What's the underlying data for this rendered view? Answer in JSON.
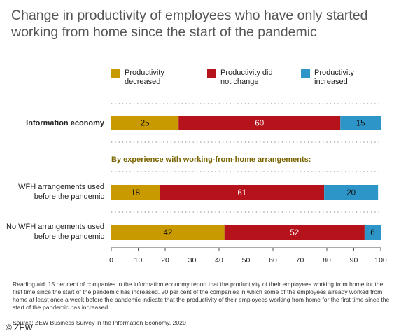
{
  "title": "Change in productivity of employees who have only started working from home since the start of the pandemic",
  "legend": [
    {
      "label": "Productivity decreased",
      "color": "#c89a00"
    },
    {
      "label": "Productivity did not change",
      "color": "#b5121b"
    },
    {
      "label": "Productivity increased",
      "color": "#2e95c9"
    }
  ],
  "section_heading": "By experience with working-from-home arrangements:",
  "footnote": "Reading aid: 15 per cent of companies in the information economy report that the productivity of their employees working from home for the first time since the start of the pandemic has increased. 20 per cent of the companies in which some of the employees already worked from home at least once a week before the pandemic indicate that the productivity of their employees working from home for the first time since the start of the pandemic has increased.",
  "source": "Source: ZEW Business Survey in the Information Economy, 2020",
  "copyright": "© ZEW",
  "chart_data": {
    "type": "bar",
    "orientation": "horizontal",
    "stacked": true,
    "categories": [
      "Information economy",
      "WFH arrangements used before the pandemic",
      "No WFH arrangements used before the pandemic"
    ],
    "series": [
      {
        "name": "Productivity decreased",
        "values": [
          25,
          18,
          42
        ],
        "color": "#c89a00"
      },
      {
        "name": "Productivity did not change",
        "values": [
          60,
          61,
          52
        ],
        "color": "#b5121b"
      },
      {
        "name": "Productivity increased",
        "values": [
          15,
          20,
          6
        ],
        "color": "#2e95c9"
      }
    ],
    "xlim": [
      0,
      100
    ],
    "xticks": [
      0,
      10,
      20,
      30,
      40,
      50,
      60,
      70,
      80,
      90,
      100
    ],
    "grid": false,
    "legend_position": "top"
  }
}
